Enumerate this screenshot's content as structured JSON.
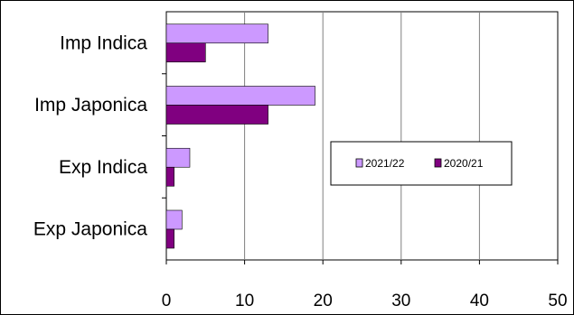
{
  "chart_data": {
    "type": "bar",
    "orientation": "horizontal",
    "categories": [
      "Imp Indica",
      "Imp Japonica",
      "Exp Indica",
      "Exp Japonica"
    ],
    "series": [
      {
        "name": "2021/22",
        "color": "#cc99ff",
        "values": [
          13,
          19,
          3,
          2
        ]
      },
      {
        "name": "2020/21",
        "color": "#800080",
        "values": [
          5,
          13,
          1,
          1
        ]
      }
    ],
    "xlim": [
      0,
      50
    ],
    "xticks": [
      0,
      10,
      20,
      30,
      40,
      50
    ],
    "title": "",
    "xlabel": "",
    "ylabel": "",
    "grid": true,
    "legend": "inside-right"
  }
}
